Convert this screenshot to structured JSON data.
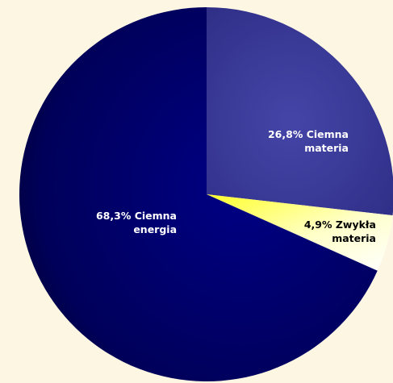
{
  "chart_data": {
    "type": "pie",
    "slices": [
      {
        "label": "Ciemna materia",
        "value": 26.8,
        "color": "#3a3a9a",
        "label_color": "#ffffff",
        "lines": [
          "26,8% Ciemna",
          "materia"
        ]
      },
      {
        "label": "Zwykła materia",
        "value": 4.9,
        "color": "#ffff40",
        "label_color": "#000000",
        "lines": [
          "4,9% Zwykła",
          "materia"
        ]
      },
      {
        "label": "Ciemna energia",
        "value": 68.3,
        "color": "#000070",
        "label_color": "#ffffff",
        "lines": [
          "68,3% Ciemna",
          "energia"
        ]
      }
    ],
    "start_angle_deg": 0,
    "direction": "clockwise",
    "legend": "none",
    "title": ""
  },
  "colors": {
    "background": "#fdf6e3"
  }
}
